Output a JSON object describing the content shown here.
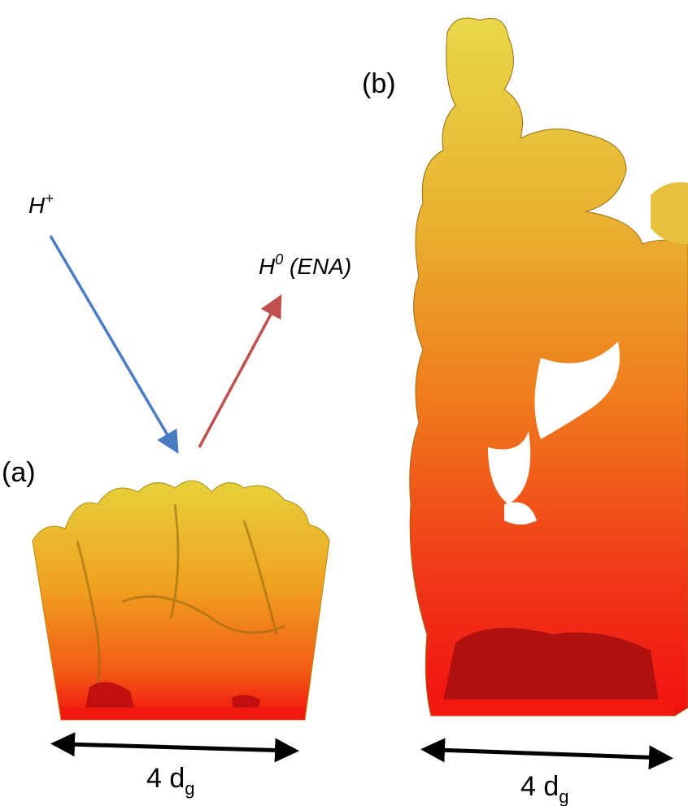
{
  "panels": [
    {
      "label": "(a)",
      "width_label": {
        "base": "4 d",
        "sub": "g"
      }
    },
    {
      "label": "(b)",
      "width_label": {
        "base": "4 d",
        "sub": "g"
      }
    }
  ],
  "incoming": {
    "base": "H",
    "sup": "+"
  },
  "outgoing": {
    "base": "H",
    "sup": "0",
    "rest": " (ENA)"
  }
}
